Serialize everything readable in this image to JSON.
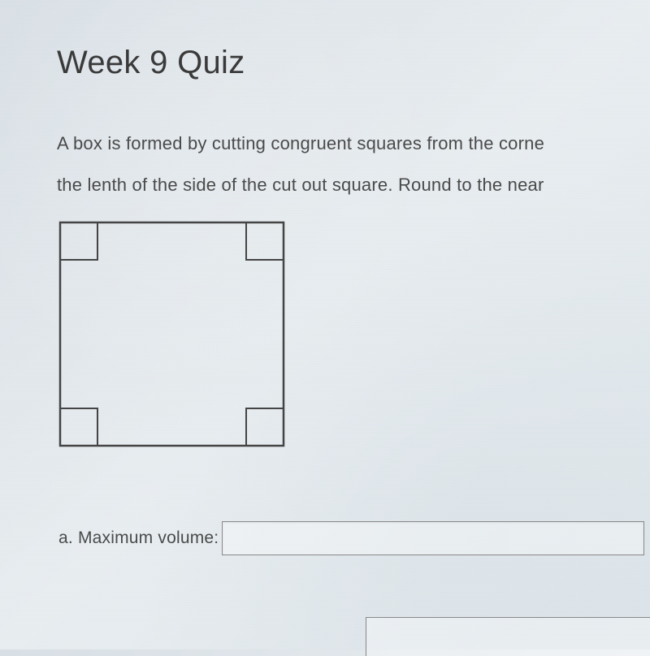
{
  "title": "Week 9 Quiz",
  "question": {
    "line1": "A box is formed by cutting congruent squares from the corne",
    "line2": "the lenth of the side of the cut out square. Round to the near"
  },
  "diagram": {
    "type": "geometric",
    "outer_square": {
      "size": 275,
      "stroke": "#444444",
      "stroke_width": 2.5,
      "fill": "none"
    },
    "corner_squares": {
      "size": 46,
      "stroke": "#444444",
      "stroke_width": 2,
      "fill": "none",
      "positions": [
        "top-left",
        "top-right",
        "bottom-left",
        "bottom-right"
      ]
    }
  },
  "answers": {
    "a": {
      "label": "a. Maximum volume:",
      "value": ""
    }
  }
}
